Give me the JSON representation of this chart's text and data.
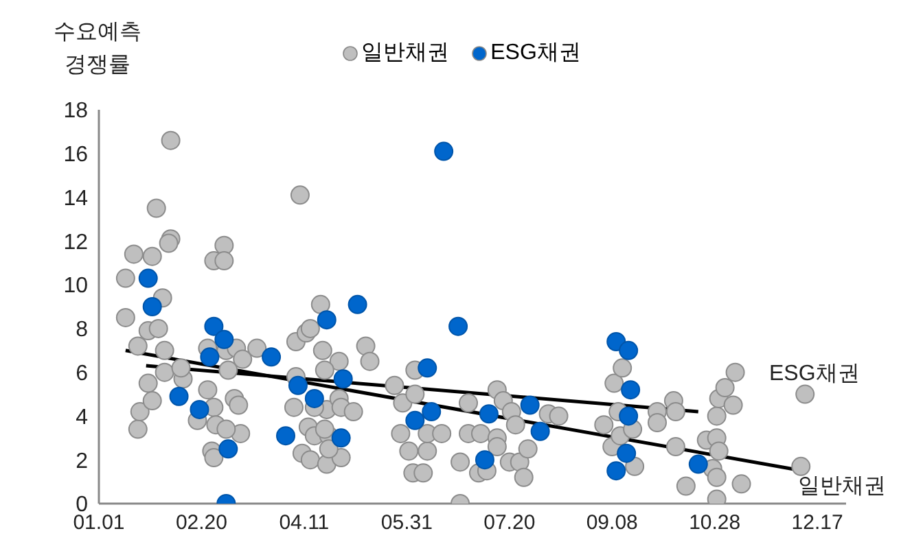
{
  "chart_data": {
    "type": "scatter",
    "ylabel": "수요예측\n경쟁률",
    "legend": "top",
    "marker": "circle",
    "grid": false,
    "xlim": [
      "--01-01",
      "--12-31"
    ],
    "xticks": [
      {
        "value": "--01-01",
        "label": "01.01"
      },
      {
        "value": "--02-20",
        "label": "02.20"
      },
      {
        "value": "--04-11",
        "label": "04.11"
      },
      {
        "value": "--05-31",
        "label": "05.31"
      },
      {
        "value": "--07-20",
        "label": "07.20"
      },
      {
        "value": "--09-08",
        "label": "09.08"
      },
      {
        "value": "--10-28",
        "label": "10.28"
      },
      {
        "value": "--12-17",
        "label": "12.17"
      }
    ],
    "ylim": [
      0,
      18
    ],
    "yticks": [
      0,
      2,
      4,
      6,
      8,
      10,
      12,
      14,
      16,
      18
    ],
    "series": [
      {
        "name": "일반채권",
        "color": "#bfbfbf",
        "x": [
          "--01-14",
          "--01-14",
          "--01-18",
          "--01-20",
          "--01-21",
          "--01-20",
          "--01-25",
          "--01-25",
          "--01-27",
          "--01-27",
          "--01-29",
          "--01-30",
          "--02-01",
          "--02-02",
          "--02-02",
          "--02-05",
          "--02-04",
          "--02-05",
          "--02-11",
          "--02-10",
          "--02-18",
          "--02-23",
          "--02-23",
          "--02-26",
          "--02-26",
          "--02-27",
          "--03-03",
          "--03-03",
          "--02-25",
          "--02-26",
          "--03-05",
          "--03-04",
          "--03-09",
          "--03-08",
          "--03-10",
          "--03-11",
          "--03-04",
          "--03-12",
          "--03-19",
          "--04-09",
          "--04-07",
          "--04-12",
          "--04-14",
          "--04-06",
          "--04-07",
          "--04-13",
          "--04-16",
          "--04-10",
          "--04-14",
          "--04-22",
          "--04-19",
          "--04-20",
          "--04-23",
          "--04-28",
          "--04-22",
          "--04-16",
          "--04-29",
          "--04-28",
          "--04-21",
          "--04-29",
          "--05-05",
          "--04-21",
          "--04-23",
          "--05-11",
          "--05-13",
          "--05-25",
          "--05-29",
          "--05-28",
          "--06-01",
          "--06-03",
          "--06-08",
          "--06-10",
          "--06-04",
          "--06-04",
          "--06-10",
          "--06-17",
          "--06-26",
          "--06-26",
          "--06-30",
          "--06-30",
          "--07-06",
          "--07-05",
          "--07-09",
          "--07-14",
          "--07-17",
          "--07-14",
          "--07-14",
          "--07-21",
          "--07-23",
          "--07-20",
          "--07-25",
          "--07-27",
          "--07-29",
          "--08-08",
          "--08-13",
          "--09-04",
          "--09-08",
          "--09-09",
          "--09-13",
          "--09-11",
          "--09-12",
          "--09-19",
          "--09-18",
          "--09-30",
          "--09-30",
          "--10-08",
          "--10-09",
          "--10-09",
          "--10-14",
          "--10-24",
          "--10-29",
          "--10-30",
          "--10-27",
          "--10-29",
          "--10-29",
          "--11-10",
          "--10-29",
          "--10-30",
          "--11-02",
          "--11-06",
          "--11-07",
          "--12-11",
          "--12-09"
        ],
        "values": [
          8.5,
          10.3,
          11.4,
          3.4,
          4.2,
          7.2,
          5.5,
          7.9,
          4.7,
          11.3,
          13.5,
          8.0,
          9.4,
          7.0,
          6.0,
          12.1,
          11.9,
          16.6,
          5.7,
          6.2,
          3.8,
          5.2,
          7.1,
          4.4,
          11.1,
          3.6,
          11.8,
          11.1,
          2.4,
          2.1,
          6.1,
          7.0,
          7.1,
          4.8,
          4.5,
          3.2,
          3.4,
          6.6,
          7.1,
          14.1,
          7.4,
          7.8,
          8.0,
          4.4,
          5.8,
          3.5,
          3.1,
          2.3,
          2.0,
          1.8,
          9.1,
          7.0,
          3.1,
          6.5,
          4.3,
          4.4,
          2.1,
          4.8,
          6.1,
          4.4,
          4.2,
          3.4,
          2.5,
          7.2,
          6.5,
          5.4,
          4.6,
          3.2,
          2.4,
          1.4,
          1.4,
          2.4,
          6.1,
          5.0,
          3.2,
          3.2,
          1.9,
          0.0,
          4.6,
          3.2,
          3.2,
          1.4,
          1.5,
          5.2,
          4.7,
          3.0,
          2.6,
          4.2,
          3.6,
          1.9,
          1.9,
          1.2,
          2.5,
          4.1,
          4.0,
          3.6,
          2.6,
          5.5,
          6.2,
          4.2,
          3.1,
          1.7,
          3.4,
          4.2,
          3.7,
          4.7,
          4.2,
          2.6,
          0.8,
          2.9,
          3.0,
          2.4,
          1.6,
          1.2,
          0.2,
          0.9,
          4.0,
          4.8,
          5.3,
          4.5,
          6.0,
          5.0,
          1.7
        ]
      },
      {
        "name": "ESG채권",
        "color": "#0066cc",
        "x": [
          "--01-25",
          "--01-27",
          "--02-09",
          "--02-19",
          "--02-24",
          "--02-26",
          "--03-03",
          "--03-05",
          "--03-04",
          "--03-26",
          "--04-02",
          "--04-08",
          "--04-16",
          "--04-22",
          "--04-29",
          "--04-30",
          "--05-07",
          "--06-10",
          "--06-04",
          "--06-12",
          "--06-18",
          "--06-25",
          "--07-10",
          "--07-08",
          "--07-30",
          "--08-04",
          "--09-10",
          "--09-16",
          "--09-17",
          "--09-16",
          "--09-15",
          "--09-10",
          "--10-20"
        ],
        "values": [
          10.3,
          9.0,
          4.9,
          4.3,
          6.7,
          8.1,
          7.5,
          2.5,
          0.0,
          6.7,
          3.1,
          5.4,
          4.8,
          8.4,
          3.0,
          5.7,
          9.1,
          6.2,
          3.8,
          4.2,
          16.1,
          8.1,
          4.1,
          2.0,
          4.5,
          3.3,
          7.4,
          7.0,
          5.2,
          4.0,
          2.3,
          1.5,
          1.8
        ]
      },
      {
        "type": "line",
        "marker": "none",
        "color": "#000000",
        "x": [
          "--01-14",
          "--12-10"
        ],
        "values": [
          7.0,
          1.5
        ]
      },
      {
        "type": "line",
        "marker": "none",
        "color": "#000000",
        "x": [
          "--01-24",
          "--10-20"
        ],
        "values": [
          6.3,
          4.2
        ]
      }
    ],
    "annotations": [
      "ESG채권",
      "일반채권"
    ]
  }
}
